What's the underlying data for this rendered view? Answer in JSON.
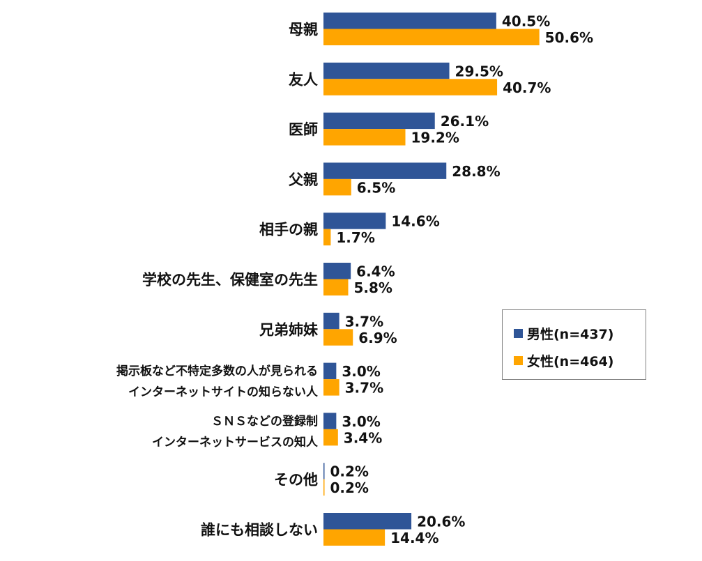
{
  "chart_data": {
    "type": "bar",
    "orientation": "horizontal",
    "categories": [
      "母親",
      "友人",
      "医師",
      "父親",
      "相手の親",
      "学校の先生、保健室の先生",
      "兄弟姉妹",
      "掲示板など不特定多数の人が見られる\nインターネットサイトの知らない人",
      "ＳＮＳなどの登録制\nインターネットサービスの知人",
      "その他",
      "誰にも相談しない"
    ],
    "series": [
      {
        "name": "男性(n=437)",
        "color": "#2F5597",
        "values": [
          40.5,
          29.5,
          26.1,
          28.8,
          14.6,
          6.4,
          3.7,
          3.0,
          3.0,
          0.2,
          20.6
        ],
        "labels": [
          "40.5%",
          "29.5%",
          "26.1%",
          "28.8%",
          "14.6%",
          "6.4%",
          "3.7%",
          "3.0%",
          "3.0%",
          "0.2%",
          "20.6%"
        ]
      },
      {
        "name": "女性(n=464)",
        "color": "#FFA500",
        "values": [
          50.6,
          40.7,
          19.2,
          6.5,
          1.7,
          5.8,
          6.9,
          3.7,
          3.4,
          0.2,
          14.4
        ],
        "labels": [
          "50.6%",
          "40.7%",
          "19.2%",
          "6.5%",
          "1.7%",
          "5.8%",
          "6.9%",
          "3.7%",
          "3.4%",
          "0.2%",
          "14.4%"
        ]
      }
    ],
    "unit": "%",
    "xlim": [
      0,
      60
    ],
    "grid": false,
    "legend_position": "right"
  }
}
